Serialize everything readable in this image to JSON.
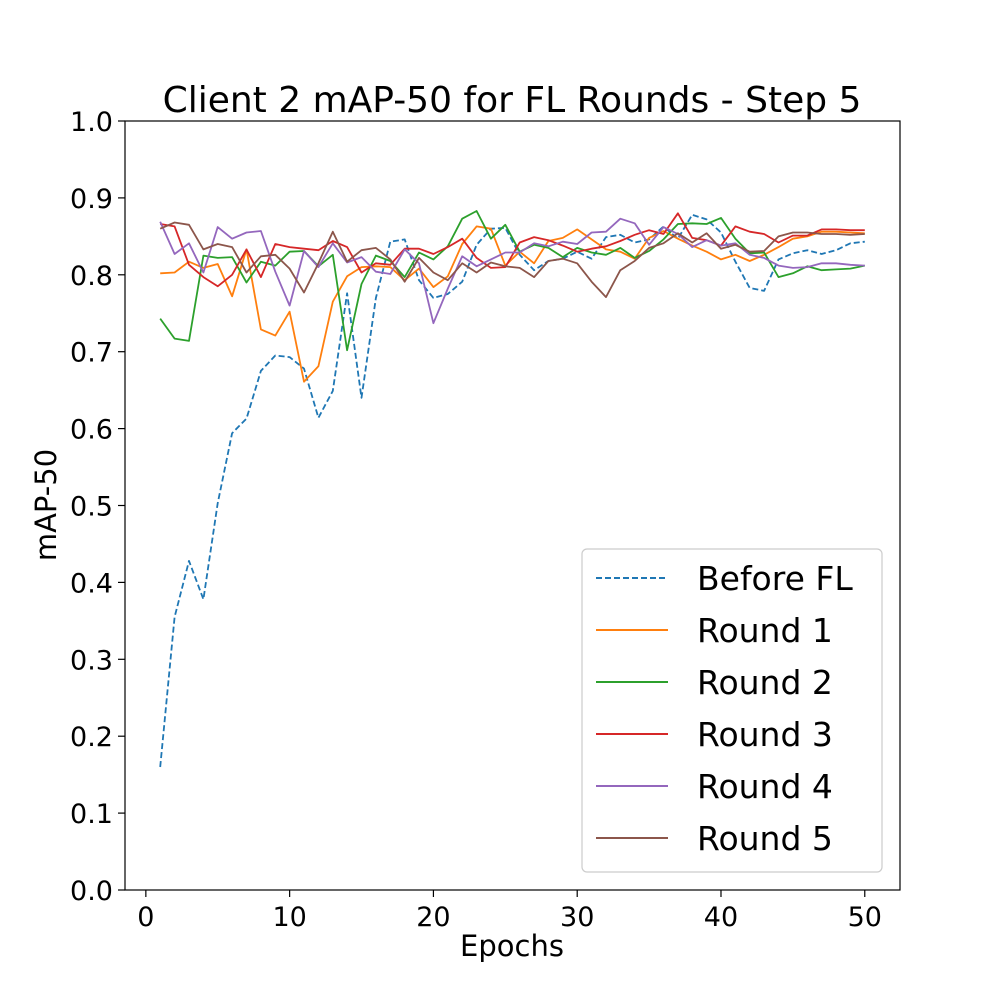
{
  "chart_data": {
    "type": "line",
    "title": "Client 2 mAP-50 for FL Rounds - Step 5",
    "xlabel": "Epochs",
    "ylabel": "mAP-50",
    "xlim": [
      -1.45,
      52.45
    ],
    "ylim": [
      0.0,
      1.0
    ],
    "xticks": [
      0,
      10,
      20,
      30,
      40,
      50
    ],
    "yticks": [
      0.0,
      0.1,
      0.2,
      0.3,
      0.4,
      0.5,
      0.6,
      0.7,
      0.8,
      0.9,
      1.0
    ],
    "grid": false,
    "legend_position": "lower right",
    "x": [
      1,
      2,
      3,
      4,
      5,
      6,
      7,
      8,
      9,
      10,
      11,
      12,
      13,
      14,
      15,
      16,
      17,
      18,
      19,
      20,
      21,
      22,
      23,
      24,
      25,
      26,
      27,
      28,
      29,
      30,
      31,
      32,
      33,
      34,
      35,
      36,
      37,
      38,
      39,
      40,
      41,
      42,
      43,
      44,
      45,
      46,
      47,
      48,
      49,
      50
    ],
    "series": [
      {
        "name": "Before FL",
        "color": "#1f77b4",
        "dash": "dashed",
        "values": [
          0.16,
          0.355,
          0.428,
          0.378,
          0.503,
          0.594,
          0.613,
          0.675,
          0.695,
          0.693,
          0.678,
          0.614,
          0.649,
          0.776,
          0.64,
          0.77,
          0.843,
          0.846,
          0.793,
          0.77,
          0.775,
          0.791,
          0.839,
          0.86,
          0.861,
          0.826,
          0.806,
          0.818,
          0.821,
          0.83,
          0.821,
          0.849,
          0.852,
          0.842,
          0.846,
          0.863,
          0.847,
          0.878,
          0.872,
          0.855,
          0.817,
          0.783,
          0.779,
          0.82,
          0.828,
          0.832,
          0.827,
          0.832,
          0.841,
          0.843
        ]
      },
      {
        "name": "Round 1",
        "color": "#ff7f0e",
        "dash": "solid",
        "values": [
          0.802,
          0.803,
          0.817,
          0.809,
          0.814,
          0.772,
          0.833,
          0.729,
          0.721,
          0.752,
          0.661,
          0.681,
          0.765,
          0.798,
          0.81,
          0.811,
          0.81,
          0.793,
          0.808,
          0.784,
          0.798,
          0.84,
          0.863,
          0.86,
          0.812,
          0.83,
          0.815,
          0.844,
          0.848,
          0.859,
          0.846,
          0.833,
          0.83,
          0.821,
          0.848,
          0.857,
          0.847,
          0.838,
          0.83,
          0.82,
          0.826,
          0.818,
          0.826,
          0.836,
          0.847,
          0.85,
          0.856,
          0.856,
          0.855,
          0.854
        ]
      },
      {
        "name": "Round 2",
        "color": "#2ca02c",
        "dash": "solid",
        "values": [
          0.743,
          0.717,
          0.714,
          0.825,
          0.822,
          0.823,
          0.79,
          0.817,
          0.812,
          0.83,
          0.831,
          0.811,
          0.826,
          0.702,
          0.788,
          0.825,
          0.818,
          0.797,
          0.829,
          0.82,
          0.837,
          0.873,
          0.883,
          0.847,
          0.865,
          0.83,
          0.839,
          0.835,
          0.823,
          0.835,
          0.829,
          0.826,
          0.835,
          0.822,
          0.831,
          0.846,
          0.866,
          0.867,
          0.866,
          0.874,
          0.847,
          0.828,
          0.829,
          0.797,
          0.802,
          0.811,
          0.806,
          0.807,
          0.808,
          0.812
        ]
      },
      {
        "name": "Round 3",
        "color": "#d62728",
        "dash": "solid",
        "values": [
          0.866,
          0.863,
          0.813,
          0.797,
          0.785,
          0.8,
          0.833,
          0.797,
          0.84,
          0.836,
          0.834,
          0.832,
          0.844,
          0.836,
          0.803,
          0.815,
          0.813,
          0.834,
          0.834,
          0.827,
          0.836,
          0.847,
          0.822,
          0.809,
          0.81,
          0.842,
          0.849,
          0.845,
          0.838,
          0.83,
          0.834,
          0.837,
          0.844,
          0.852,
          0.858,
          0.853,
          0.88,
          0.848,
          0.845,
          0.838,
          0.863,
          0.856,
          0.853,
          0.842,
          0.851,
          0.851,
          0.859,
          0.859,
          0.858,
          0.858
        ]
      },
      {
        "name": "Round 4",
        "color": "#9467bd",
        "dash": "solid",
        "values": [
          0.869,
          0.827,
          0.841,
          0.803,
          0.862,
          0.847,
          0.855,
          0.857,
          0.804,
          0.76,
          0.831,
          0.81,
          0.841,
          0.816,
          0.823,
          0.804,
          0.801,
          0.833,
          0.815,
          0.737,
          0.782,
          0.824,
          0.811,
          0.82,
          0.829,
          0.829,
          0.841,
          0.837,
          0.843,
          0.84,
          0.855,
          0.856,
          0.873,
          0.867,
          0.839,
          0.862,
          0.853,
          0.836,
          0.845,
          0.838,
          0.841,
          0.826,
          0.822,
          0.812,
          0.809,
          0.81,
          0.815,
          0.815,
          0.813,
          0.812
        ]
      },
      {
        "name": "Round 5",
        "color": "#8c564b",
        "dash": "solid",
        "values": [
          0.86,
          0.868,
          0.865,
          0.833,
          0.84,
          0.836,
          0.803,
          0.824,
          0.826,
          0.808,
          0.777,
          0.815,
          0.856,
          0.817,
          0.832,
          0.835,
          0.82,
          0.791,
          0.822,
          0.803,
          0.793,
          0.815,
          0.803,
          0.816,
          0.811,
          0.809,
          0.797,
          0.818,
          0.821,
          0.815,
          0.791,
          0.771,
          0.806,
          0.818,
          0.835,
          0.841,
          0.854,
          0.842,
          0.854,
          0.834,
          0.839,
          0.83,
          0.831,
          0.85,
          0.855,
          0.855,
          0.853,
          0.853,
          0.852,
          0.853
        ]
      }
    ]
  }
}
